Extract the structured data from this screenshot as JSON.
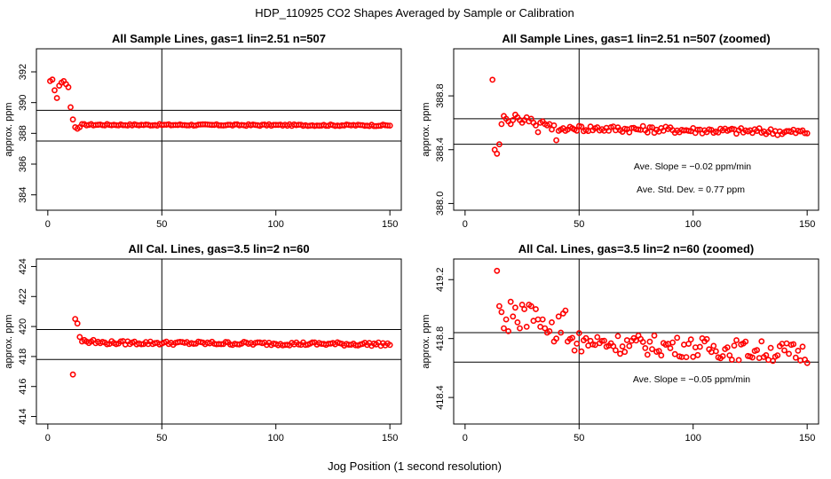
{
  "figure": {
    "title": "HDP_110925  CO2 Shapes Averaged by Sample or Calibration",
    "xlabel": "Jog Position (1 second resolution)"
  },
  "chart_data": [
    {
      "id": "p1",
      "type": "scatter",
      "title": "All Sample Lines, gas=1 lin=2.51 n=507",
      "xlabel": "",
      "ylabel": "approx. ppm",
      "xlim": [
        -5,
        155
      ],
      "ylim": [
        383,
        393.5
      ],
      "xticks": [
        0,
        50,
        100,
        150
      ],
      "yticks": [
        384,
        386,
        388,
        390,
        392
      ],
      "vline": 50,
      "hlines": [
        389.5,
        387.5
      ],
      "color": "#ff0000",
      "base": 388.55,
      "slope": -0.0003,
      "x": [
        1,
        2,
        3,
        4,
        5,
        6,
        7,
        8,
        9,
        10,
        11,
        12,
        13,
        14
      ],
      "y": [
        391.4,
        391.5,
        390.8,
        390.3,
        391.1,
        391.3,
        391.4,
        391.2,
        391.0,
        389.7,
        388.9,
        388.4,
        388.3,
        388.4
      ],
      "annotations": []
    },
    {
      "id": "p2",
      "type": "scatter",
      "title": "All Sample Lines, gas=1 lin=2.51 n=507 (zoomed)",
      "xlabel": "",
      "ylabel": "approx. ppm",
      "xlim": [
        -5,
        155
      ],
      "ylim": [
        387.95,
        389.15
      ],
      "xticks": [
        0,
        50,
        100,
        150
      ],
      "yticks": [
        388.0,
        388.4,
        388.8
      ],
      "vline": 50,
      "hlines": [
        388.63,
        388.44
      ],
      "color": "#ff0000",
      "base": 388.56,
      "slope": -0.0003,
      "noise": 0.025,
      "x": [
        12,
        13,
        14,
        15,
        16,
        17,
        18,
        19,
        20,
        21,
        22,
        23,
        24,
        25,
        26,
        27,
        28,
        29,
        30,
        31,
        32,
        33,
        34,
        35,
        36,
        37,
        38,
        39,
        40,
        41,
        42,
        43,
        44,
        45,
        46,
        47,
        48
      ],
      "y": [
        388.92,
        388.4,
        388.37,
        388.44,
        388.59,
        388.65,
        388.63,
        388.61,
        388.59,
        388.62,
        388.66,
        388.64,
        388.62,
        388.6,
        388.62,
        388.64,
        388.61,
        388.63,
        388.6,
        388.58,
        388.53,
        388.6,
        388.61,
        388.59,
        388.58,
        388.59,
        388.55,
        388.58,
        388.47,
        388.54,
        388.55,
        388.56,
        388.54,
        388.55,
        388.57,
        388.56,
        388.55
      ],
      "annotations": [
        "Ave. Slope =  −0.02  ppm/min",
        "Ave. Std. Dev. =  0.77  ppm"
      ]
    },
    {
      "id": "p3",
      "type": "scatter",
      "title": "All Cal. Lines, gas=3.5 lin=2 n=60",
      "xlabel": "",
      "ylabel": "approx. ppm",
      "xlim": [
        -5,
        155
      ],
      "ylim": [
        413.5,
        424.5
      ],
      "xticks": [
        0,
        50,
        100,
        150
      ],
      "yticks": [
        414,
        416,
        418,
        420,
        422,
        424
      ],
      "vline": 50,
      "hlines": [
        419.8,
        417.8
      ],
      "color": "#ff0000",
      "base": 418.9,
      "slope": -0.0008,
      "noise": 0.12,
      "x": [
        11,
        12,
        13,
        14,
        15,
        16,
        17,
        18,
        19,
        20
      ],
      "y": [
        416.8,
        420.5,
        420.2,
        419.3,
        419.0,
        419.1,
        419.0,
        418.9,
        419.0,
        419.1
      ],
      "annotations": []
    },
    {
      "id": "p4",
      "type": "scatter",
      "title": "All Cal. Lines, gas=3.5 lin=2 n=60 (zoomed)",
      "xlabel": "",
      "ylabel": "approx. ppm",
      "xlim": [
        -5,
        155
      ],
      "ylim": [
        418.22,
        419.34
      ],
      "xticks": [
        0,
        50,
        100,
        150
      ],
      "yticks": [
        418.4,
        418.8,
        419.2
      ],
      "vline": 50,
      "hlines": [
        418.84,
        418.64
      ],
      "color": "#ff0000",
      "base": 418.78,
      "slope": -0.0008,
      "noise": 0.07,
      "x": [
        14,
        15,
        16,
        17,
        18,
        19,
        20,
        21,
        22,
        23,
        24,
        25,
        26,
        27,
        28,
        29,
        30,
        31,
        32,
        33,
        34,
        35,
        36,
        37,
        38,
        39,
        40,
        41,
        42,
        43,
        44,
        45
      ],
      "y": [
        419.26,
        419.02,
        418.98,
        418.87,
        418.93,
        418.85,
        419.05,
        418.95,
        419.01,
        418.91,
        418.87,
        419.03,
        419.0,
        418.88,
        419.03,
        419.02,
        418.92,
        419.0,
        418.93,
        418.88,
        418.93,
        418.87,
        418.84,
        418.85,
        418.91,
        418.78,
        418.8,
        418.95,
        418.84,
        418.97,
        418.99,
        418.78
      ],
      "annotations": [
        "Ave. Slope =  −0.05  ppm/min"
      ]
    }
  ]
}
